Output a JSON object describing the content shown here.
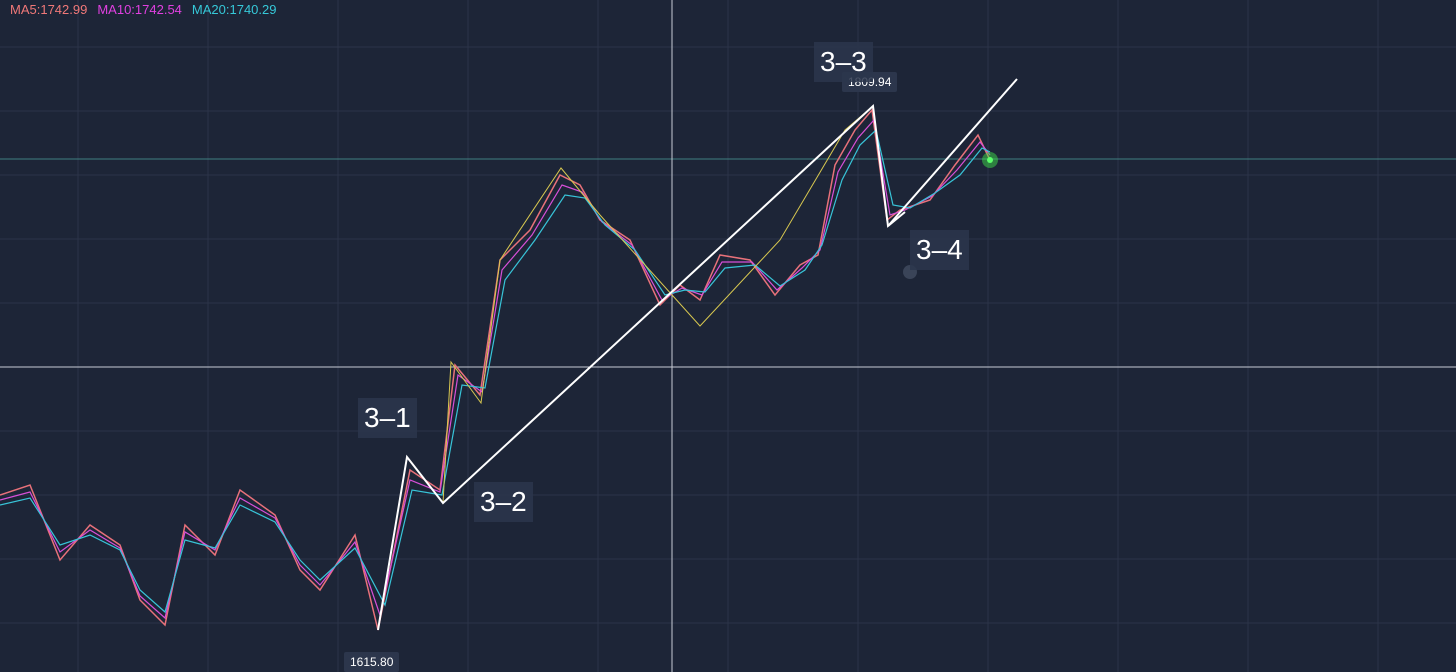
{
  "ma_legend": [
    "MA5:1742.99",
    "MA10:1742.54",
    "MA20:1740.29"
  ],
  "price_labels": {
    "high": "1809.94",
    "low": "1615.80"
  },
  "wave_labels": [
    "3–1",
    "3–2",
    "3–3",
    "3–4"
  ]
}
